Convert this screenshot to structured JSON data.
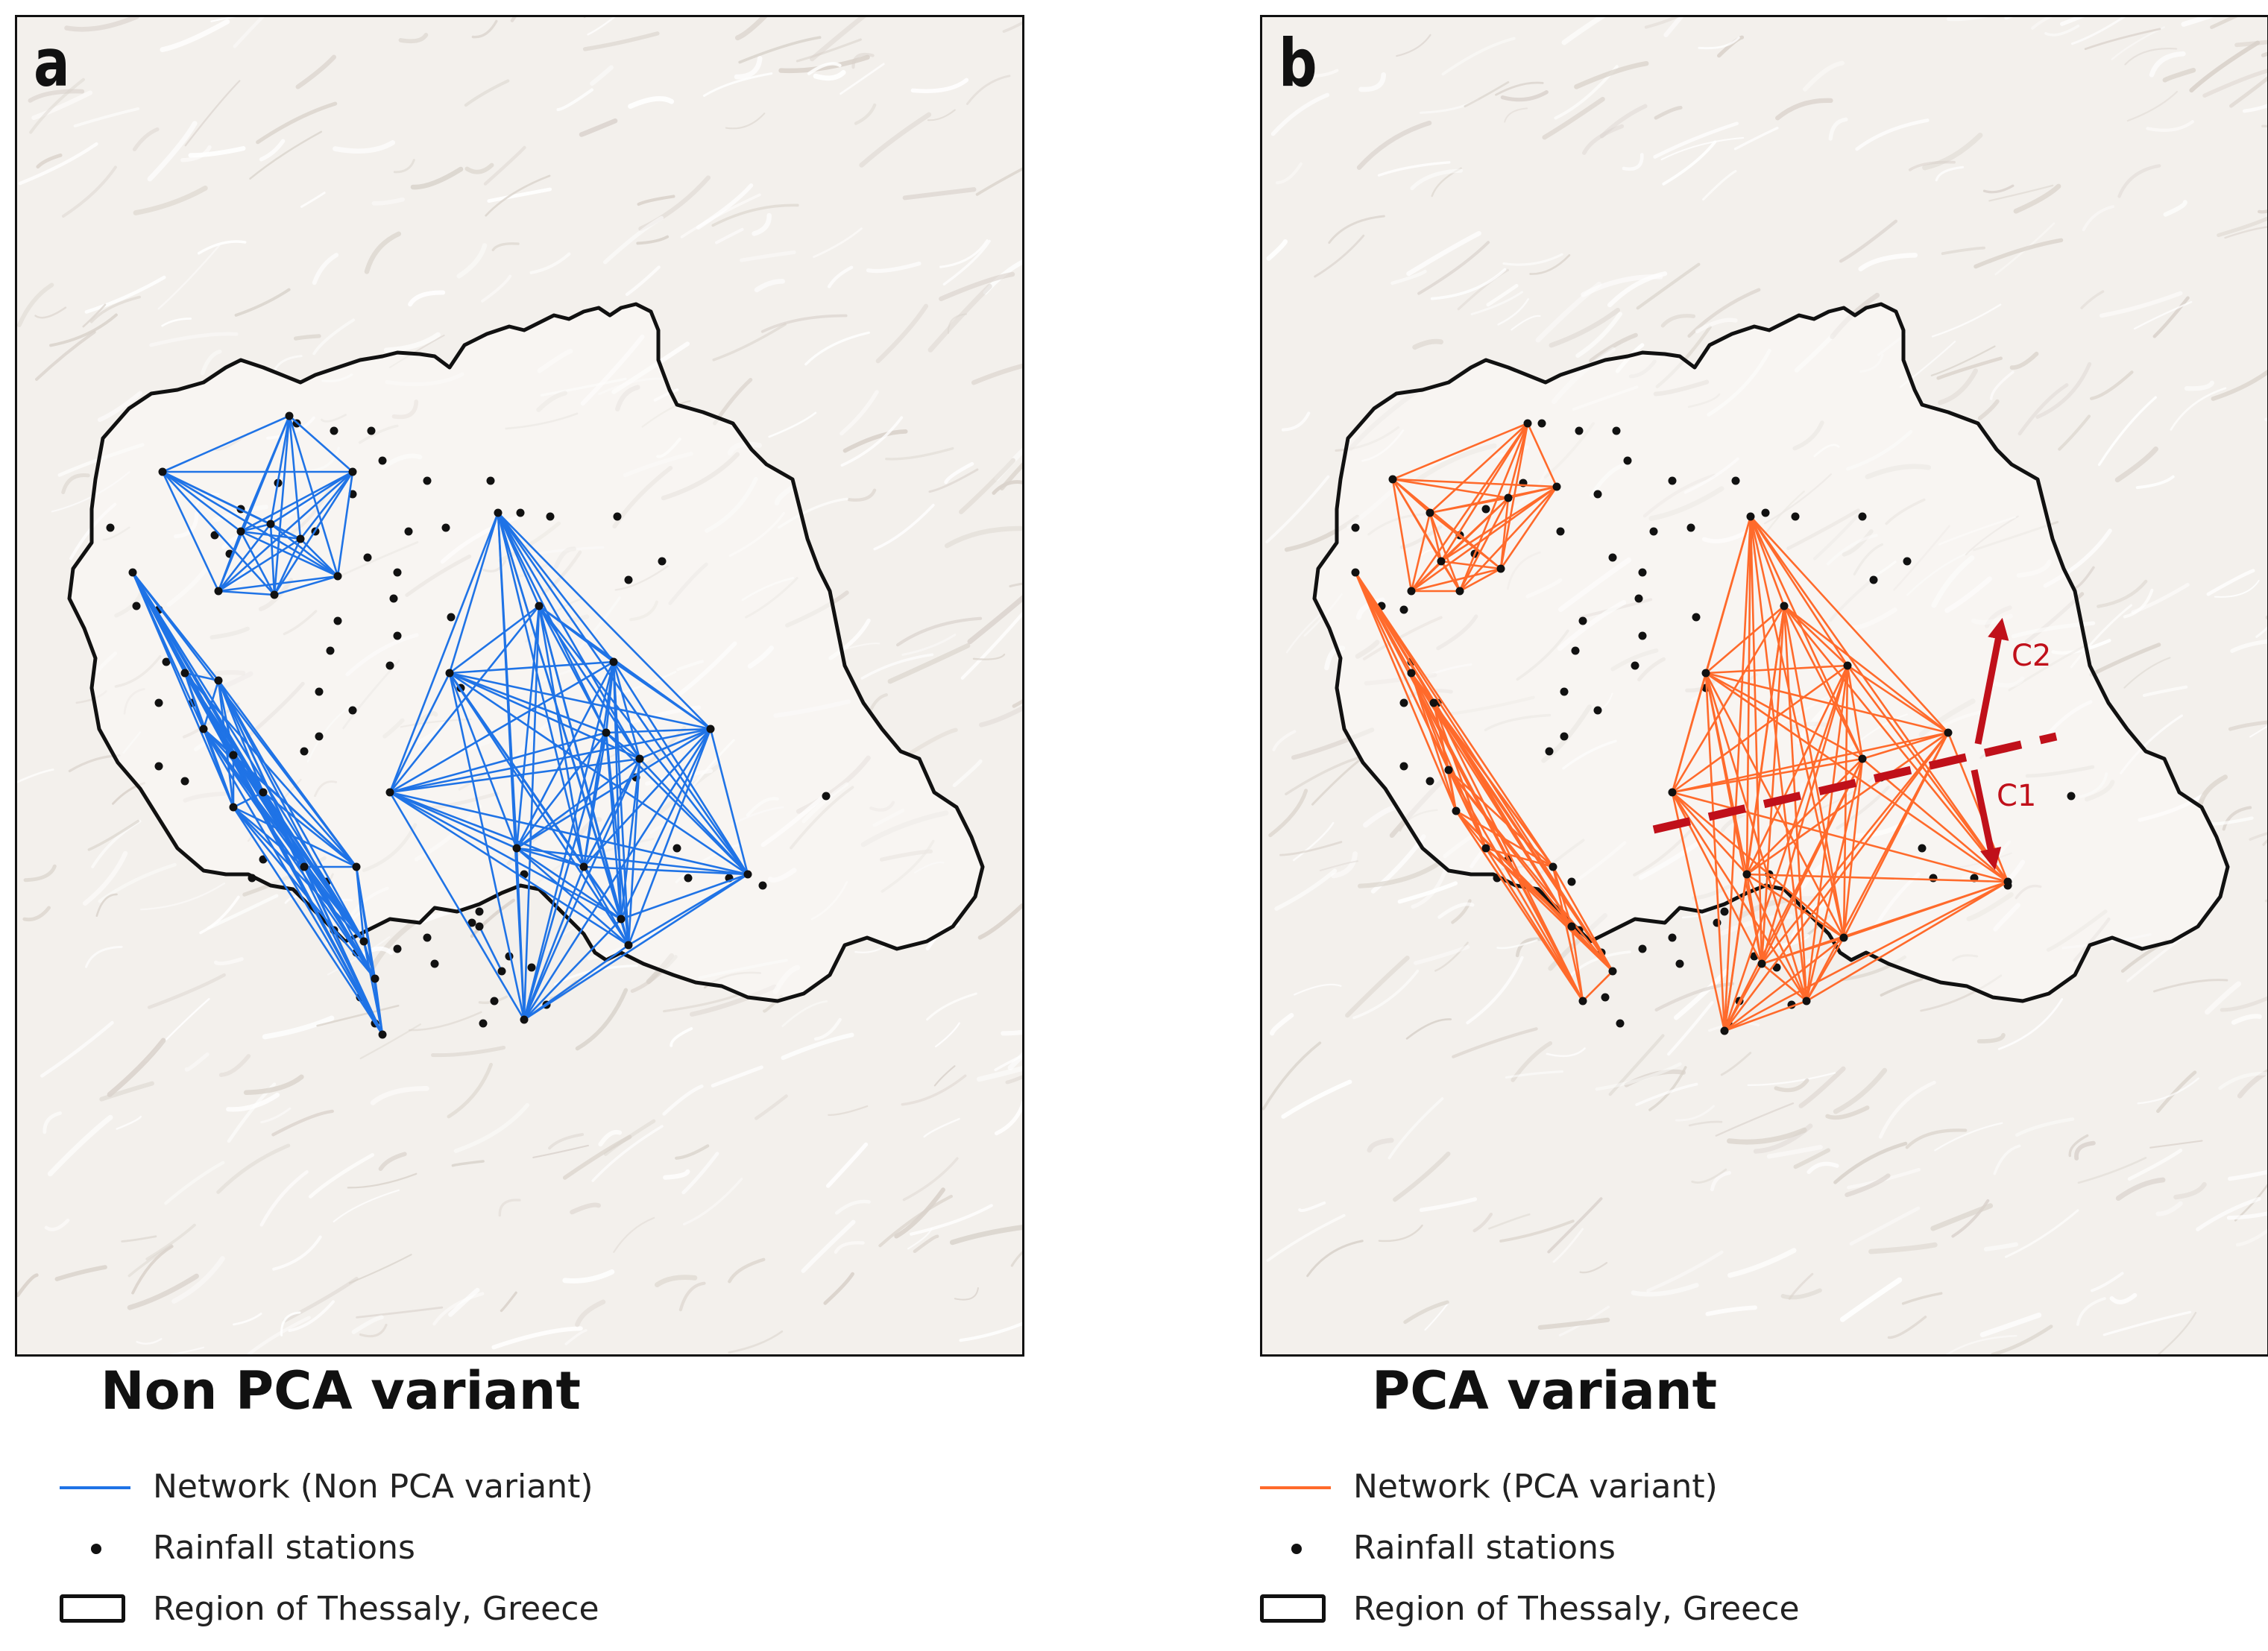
{
  "colors": {
    "network_non_pca": "#1f73e6",
    "network_pca": "#ff6a2b",
    "stations": "#111111",
    "boundary": "#111111",
    "annotation": "#c0101a"
  },
  "panels": [
    {
      "letter": "a",
      "title": "Non PCA variant",
      "legend": {
        "network": "Network (Non PCA variant)",
        "stations": "Rainfall stations",
        "region": "Region of Thessaly, Greece"
      }
    },
    {
      "letter": "b",
      "title": "PCA variant",
      "legend": {
        "network": "Network (PCA variant)",
        "stations": "Rainfall stations",
        "region": "Region of Thessaly, Greece"
      },
      "annotations": {
        "c1": "C1",
        "c2": "C2"
      }
    }
  ]
}
